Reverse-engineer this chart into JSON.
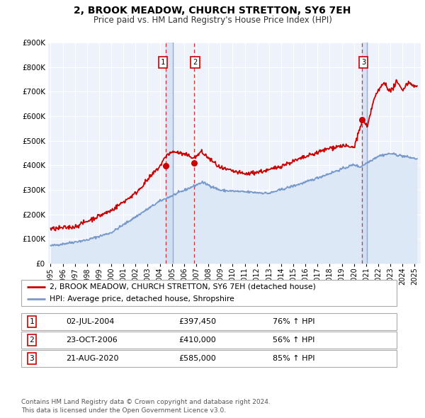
{
  "title": "2, BROOK MEADOW, CHURCH STRETTON, SY6 7EH",
  "subtitle": "Price paid vs. HM Land Registry's House Price Index (HPI)",
  "legend_label_red": "2, BROOK MEADOW, CHURCH STRETTON, SY6 7EH (detached house)",
  "legend_label_blue": "HPI: Average price, detached house, Shropshire",
  "footer1": "Contains HM Land Registry data © Crown copyright and database right 2024.",
  "footer2": "This data is licensed under the Open Government Licence v3.0.",
  "transactions": [
    {
      "id": 1,
      "date": "02-JUL-2004",
      "price": "£397,450",
      "hpi": "76% ↑ HPI",
      "year": 2004.5
    },
    {
      "id": 2,
      "date": "23-OCT-2006",
      "price": "£410,000",
      "hpi": "56% ↑ HPI",
      "year": 2006.81
    },
    {
      "id": 3,
      "date": "21-AUG-2020",
      "price": "£585,000",
      "hpi": "85% ↑ HPI",
      "year": 2020.64
    }
  ],
  "transaction_prices": [
    397450,
    410000,
    585000
  ],
  "transaction_years": [
    2004.5,
    2006.81,
    2020.64
  ],
  "red_color": "#cc0000",
  "blue_color": "#7799cc",
  "blue_fill": "#dce8f5",
  "background_color": "#eef2fa",
  "grid_color": "#ffffff",
  "vline_dashed_color": "#cc3333",
  "vline_solid_color": "#99aacc",
  "shade_color": "#c8d8f0",
  "ylim_max": 900000,
  "yticks": [
    0,
    100000,
    200000,
    300000,
    400000,
    500000,
    600000,
    700000,
    800000,
    900000
  ],
  "xlim_start": 1994.8,
  "xlim_end": 2025.5,
  "xticks": [
    1995,
    1996,
    1997,
    1998,
    1999,
    2000,
    2001,
    2002,
    2003,
    2004,
    2005,
    2006,
    2007,
    2008,
    2009,
    2010,
    2011,
    2012,
    2013,
    2014,
    2015,
    2016,
    2017,
    2018,
    2019,
    2020,
    2021,
    2022,
    2023,
    2024,
    2025
  ],
  "hpi_start_year": 1995.0,
  "hpi_end_year": 2025.2,
  "red_start_year": 1995.0,
  "red_end_year": 2025.2
}
